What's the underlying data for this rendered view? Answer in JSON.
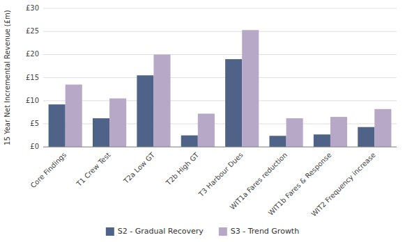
{
  "chart_data": {
    "type": "bar",
    "categories": [
      "Core Findings",
      "T1 Crew Test",
      "T2a Low GT",
      "T2b High GT",
      "T3 Harbour Dues",
      "WIT1a Fares reduction",
      "WIT1b Fares & Response",
      "WIT2 Frequency increase"
    ],
    "series": [
      {
        "name": "S2 - Gradual Recovery",
        "color": "#4F6288",
        "values": [
          9.2,
          6.2,
          15.5,
          2.5,
          19.0,
          2.4,
          2.7,
          4.3
        ]
      },
      {
        "name": "S3 - Trend Growth",
        "color": "#B8A8C8",
        "values": [
          13.5,
          10.5,
          20.0,
          7.2,
          25.3,
          6.2,
          6.5,
          8.2
        ]
      }
    ],
    "ylabel": "15 Year Net Incremental Revenue (£m)",
    "ylim": [
      0,
      30
    ],
    "yticks": [
      {
        "value": 0,
        "label": "£0"
      },
      {
        "value": 5,
        "label": "£5"
      },
      {
        "value": 10,
        "label": "£10"
      },
      {
        "value": 15,
        "label": "£15"
      },
      {
        "value": 20,
        "label": "£20"
      },
      {
        "value": 25,
        "label": "£25"
      },
      {
        "value": 30,
        "label": "£30"
      }
    ],
    "grid": true,
    "legend": "bottom"
  }
}
